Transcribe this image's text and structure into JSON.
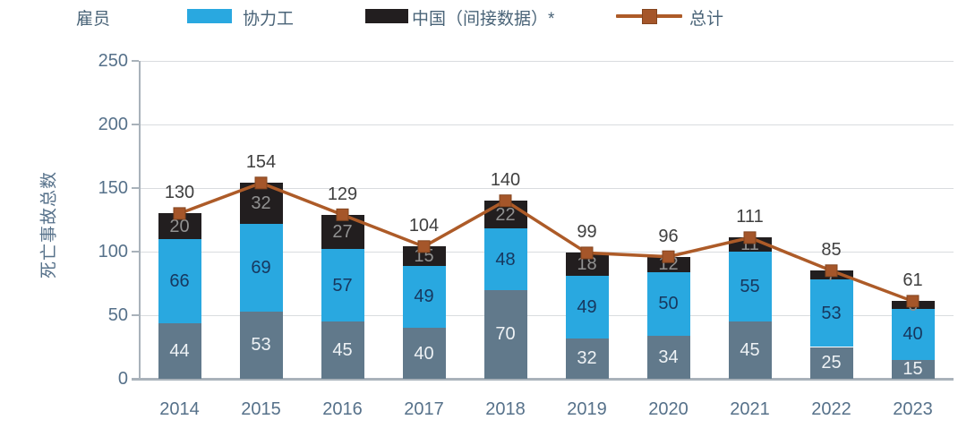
{
  "legend": {
    "items": [
      {
        "label": "雇员",
        "swatch": "none",
        "color": "#61798b"
      },
      {
        "label": "协力工",
        "swatch": "rect",
        "color": "#29a8e0"
      },
      {
        "label": "中国（间接数据）*",
        "swatch": "rect",
        "color": "#221e1f"
      },
      {
        "label": "总计",
        "swatch": "line-marker",
        "color": "#ad5b28"
      }
    ]
  },
  "chart_data": {
    "type": "bar",
    "subtype": "stacked-bars-with-total-line",
    "title": "",
    "categories": [
      "2014",
      "2015",
      "2016",
      "2017",
      "2018",
      "2019",
      "2020",
      "2021",
      "2022",
      "2023"
    ],
    "series": [
      {
        "name": "雇员",
        "kind": "bar",
        "color": "#61798b",
        "label_color": "#eef2f5",
        "values": [
          44,
          53,
          45,
          40,
          70,
          32,
          34,
          45,
          25,
          15
        ]
      },
      {
        "name": "协力工",
        "kind": "bar",
        "color": "#29a8e0",
        "label_color": "#17375e",
        "values": [
          66,
          69,
          57,
          49,
          48,
          49,
          50,
          55,
          53,
          40
        ]
      },
      {
        "name": "中国（间接数据）*",
        "kind": "bar",
        "color": "#221e1f",
        "label_color": "#919191",
        "values": [
          20,
          32,
          27,
          15,
          22,
          18,
          12,
          11,
          7,
          6
        ]
      },
      {
        "name": "总计",
        "kind": "line",
        "color": "#ad5b28",
        "marker": "square",
        "marker_fill": "#a5562a",
        "marker_stroke": "#84451f",
        "label_color": "#3f3f3f",
        "values": [
          130,
          154,
          129,
          104,
          140,
          99,
          96,
          111,
          85,
          61
        ]
      }
    ],
    "xlabel": "",
    "ylabel": "死亡事故总数",
    "ylim": [
      0,
      250
    ],
    "yticks": [
      0,
      50,
      100,
      150,
      200,
      250
    ],
    "grid": true,
    "legend_position": "top",
    "axis_color": "#a9b2ba",
    "grid_color": "#d9dcdf",
    "tick_label_color": "#56718a"
  }
}
